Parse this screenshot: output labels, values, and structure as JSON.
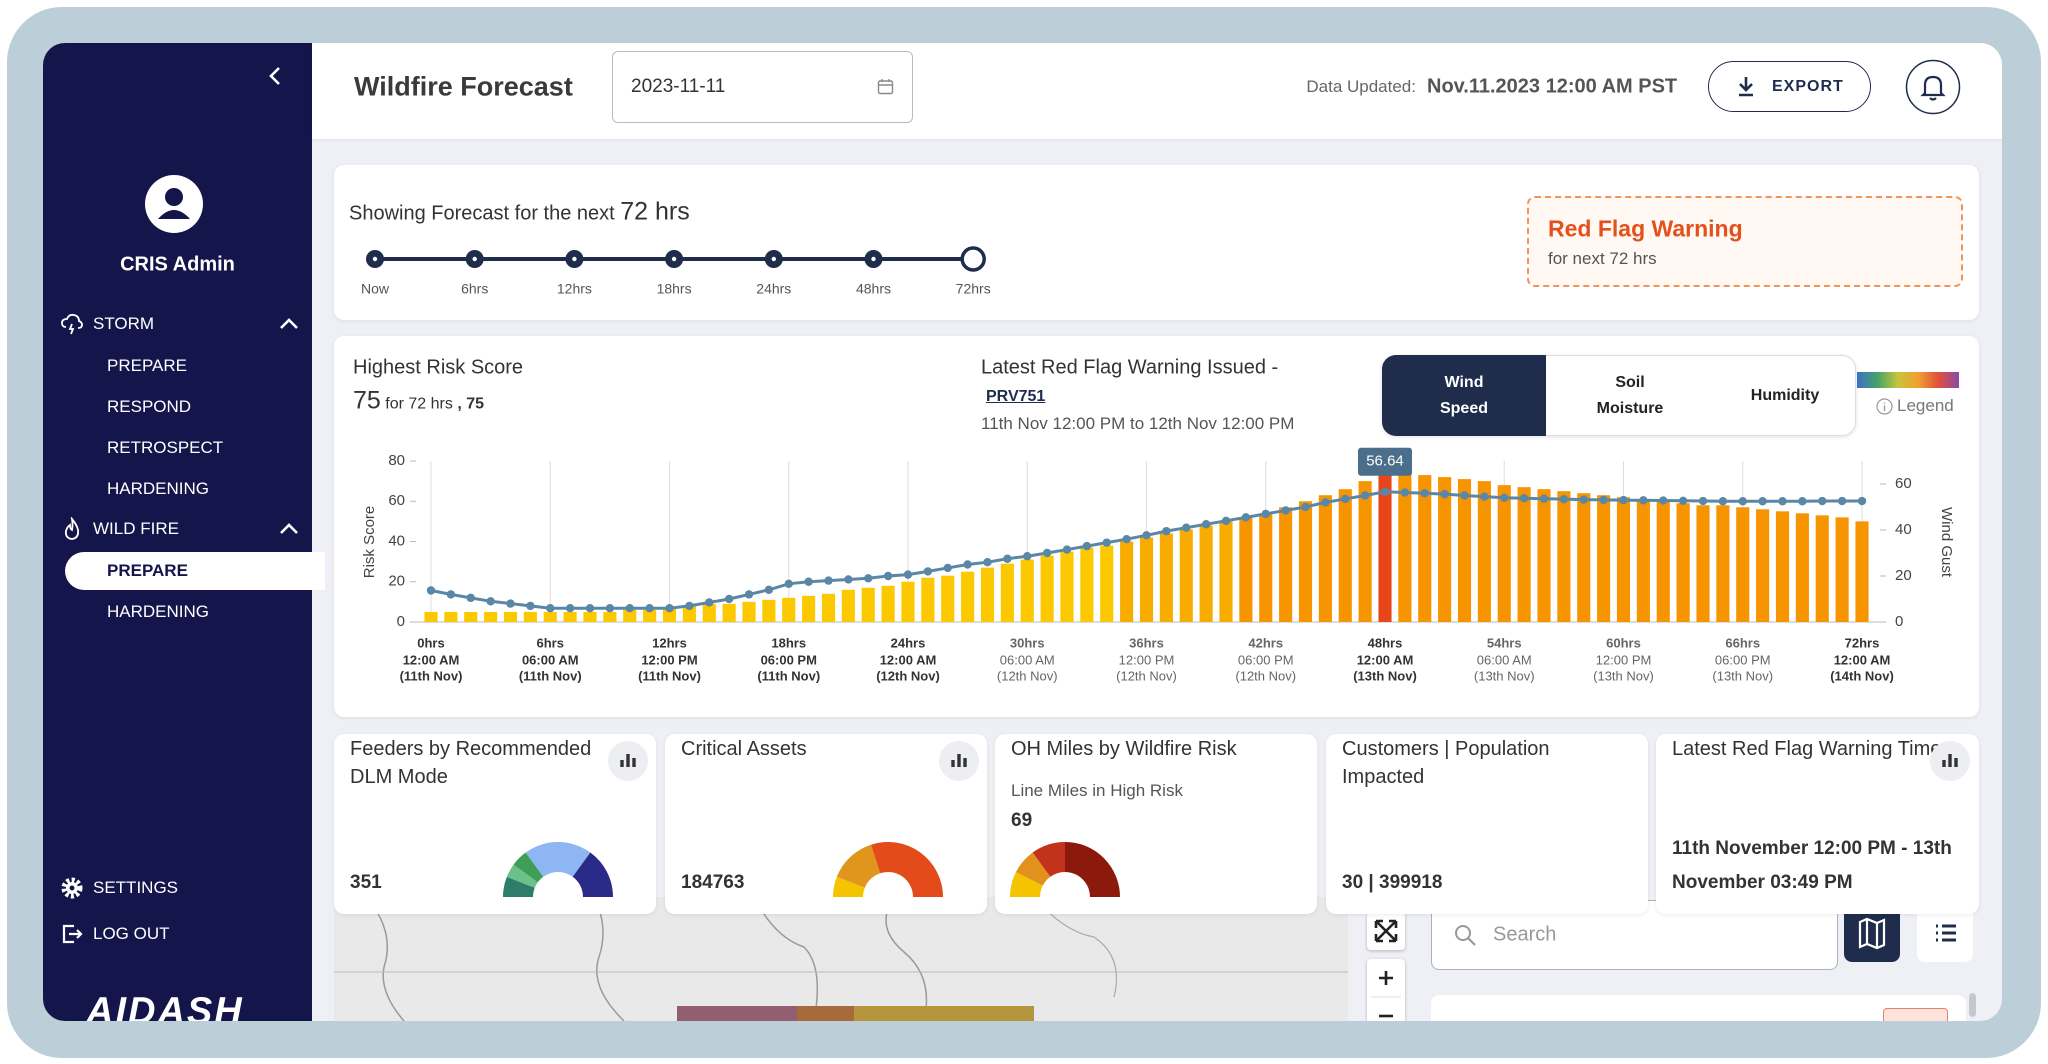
{
  "sidebar": {
    "user_name": "CRIS Admin",
    "sections": [
      {
        "label": "STORM",
        "items": [
          "PREPARE",
          "RESPOND",
          "RETROSPECT",
          "HARDENING"
        ]
      },
      {
        "label": "WILD FIRE",
        "items": [
          "PREPARE",
          "HARDENING"
        ]
      }
    ],
    "settings": "SETTINGS",
    "logout": "LOG OUT",
    "logo": "AIDASH"
  },
  "header": {
    "title": "Wildfire Forecast",
    "date": "2023-11-11",
    "updated_label": "Data Updated:",
    "updated_value": "Nov.11.2023 12:00 AM PST",
    "export": "EXPORT"
  },
  "forecast": {
    "label": "Showing Forecast for the next",
    "hours": "72 hrs",
    "steps": [
      "Now",
      "6hrs",
      "12hrs",
      "18hrs",
      "24hrs",
      "48hrs",
      "72hrs"
    ]
  },
  "red_flag": {
    "title": "Red Flag Warning",
    "subtitle": "for next 72 hrs"
  },
  "risk": {
    "title": "Highest Risk Score",
    "score": "75",
    "period": "for 72 hrs",
    "extra": ", 75"
  },
  "latest_warning": {
    "title": "Latest Red Flag Warning Issued -",
    "id": "PRV751",
    "range": "11th Nov 12:00 PM to 12th Nov 12:00 PM"
  },
  "toggle": {
    "options": [
      "Wind Speed",
      "Soil Moisture",
      "Humidity"
    ],
    "legend": "Legend"
  },
  "chart_data": {
    "type": "bar",
    "ylabel": "Risk Score",
    "y2label": "Wind Gust",
    "ylim": [
      0,
      80
    ],
    "yticks": [
      0,
      20,
      40,
      60,
      80
    ],
    "y2lim": [
      0,
      70
    ],
    "y2ticks": [
      0,
      20,
      40,
      60
    ],
    "grid": true,
    "categories": [
      {
        "hrs": "0hrs",
        "time": "12:00 AM",
        "date": "(11th Nov)"
      },
      null,
      null,
      null,
      null,
      null,
      {
        "hrs": "6hrs",
        "time": "06:00 AM",
        "date": "(11th Nov)"
      },
      null,
      null,
      null,
      null,
      null,
      {
        "hrs": "12hrs",
        "time": "12:00 PM",
        "date": "(11th Nov)"
      },
      null,
      null,
      null,
      null,
      null,
      {
        "hrs": "18hrs",
        "time": "06:00 PM",
        "date": "(11th Nov)"
      },
      null,
      null,
      null,
      null,
      null,
      {
        "hrs": "24hrs",
        "time": "12:00 AM",
        "date": "(12th Nov)"
      },
      null,
      null,
      null,
      null,
      null,
      {
        "hrs": "30hrs",
        "time": "06:00 AM",
        "date": "(12th Nov)"
      },
      null,
      null,
      null,
      null,
      null,
      {
        "hrs": "36hrs",
        "time": "12:00 PM",
        "date": "(12th Nov)"
      },
      null,
      null,
      null,
      null,
      null,
      {
        "hrs": "42hrs",
        "time": "06:00 PM",
        "date": "(12th Nov)"
      },
      null,
      null,
      null,
      null,
      null,
      {
        "hrs": "48hrs",
        "time": "12:00 AM",
        "date": "(13th Nov)"
      },
      null,
      null,
      null,
      null,
      null,
      {
        "hrs": "54hrs",
        "time": "06:00 AM",
        "date": "(13th Nov)"
      },
      null,
      null,
      null,
      null,
      null,
      {
        "hrs": "60hrs",
        "time": "12:00 PM",
        "date": "(13th Nov)"
      },
      null,
      null,
      null,
      null,
      null,
      {
        "hrs": "66hrs",
        "time": "06:00 PM",
        "date": "(13th Nov)"
      },
      null,
      null,
      null,
      null,
      null,
      {
        "hrs": "72hrs",
        "time": "12:00 AM",
        "date": "(14th Nov)"
      }
    ],
    "series": [
      {
        "values": [
          5,
          5,
          5,
          5,
          5,
          5,
          5,
          5,
          5,
          5,
          6,
          6,
          7,
          8,
          9,
          9,
          10,
          11,
          12,
          13,
          14,
          16,
          17,
          18,
          20,
          22,
          23,
          25,
          27,
          29,
          31,
          33,
          35,
          37,
          38,
          40,
          42,
          44,
          46,
          48,
          50,
          52,
          54,
          57,
          60,
          63,
          66,
          70,
          75,
          74,
          73,
          72,
          71,
          70,
          68,
          67,
          66,
          65,
          64,
          63,
          62,
          61,
          60,
          59,
          58,
          58,
          57,
          56,
          55,
          54,
          53,
          52,
          50
        ],
        "colors": [
          "#fcc800",
          "#fcc800",
          "#fcc800",
          "#fcc800",
          "#fcc800",
          "#fcc800",
          "#fcc800",
          "#fcc800",
          "#fcc800",
          "#fcc800",
          "#fcc800",
          "#fcc800",
          "#fcc800",
          "#fcc800",
          "#fcc800",
          "#fcc800",
          "#fcc800",
          "#fcc800",
          "#fcc800",
          "#fcc800",
          "#fcc800",
          "#fcc800",
          "#fcc800",
          "#fcc800",
          "#fcc800",
          "#fcc800",
          "#fcc800",
          "#fcc800",
          "#fcc800",
          "#fcc800",
          "#fcc800",
          "#fcc800",
          "#fcc800",
          "#fcc800",
          "#fcc800",
          "#f9ac00",
          "#f9ac00",
          "#f9ac00",
          "#f9ac00",
          "#f9ac00",
          "#f9ac00",
          "#f79500",
          "#f79500",
          "#f79500",
          "#f79500",
          "#f79500",
          "#f79500",
          "#f79500",
          "#e8461a",
          "#f79500",
          "#f79500",
          "#f79500",
          "#f79500",
          "#f79500",
          "#f79500",
          "#f79500",
          "#f79500",
          "#f79500",
          "#f79500",
          "#f79500",
          "#f79500",
          "#f79500",
          "#f79500",
          "#f79500",
          "#f79500",
          "#f79500",
          "#f79500",
          "#f79500",
          "#f79500",
          "#f79500",
          "#f79500",
          "#f79500",
          "#f79500"
        ]
      },
      {
        "type": "line",
        "axis": "y2",
        "color": "#5b87a6",
        "values": [
          13.7,
          12,
          10.5,
          9,
          8,
          7,
          6,
          6,
          6,
          6,
          6,
          6,
          6,
          7,
          8.5,
          10,
          12,
          14,
          16.6,
          17.5,
          18,
          18.5,
          19,
          20,
          20.6,
          22,
          23.5,
          25,
          26,
          27.5,
          28.6,
          30,
          31.5,
          33,
          34.5,
          36,
          37.7,
          39.5,
          41,
          42.5,
          44,
          45.5,
          47,
          48.5,
          50,
          52,
          53.5,
          55,
          56.64,
          56.3,
          56,
          55.6,
          55,
          54.5,
          54,
          53.8,
          53.6,
          53.4,
          53.2,
          53.1,
          53,
          52.9,
          52.8,
          52.7,
          52.6,
          52.5,
          52.5,
          52.5,
          52.5,
          52.5,
          52.6,
          52.6,
          52.6
        ]
      }
    ]
  },
  "cards": [
    {
      "title": "Feeders by Recommended DLM Mode",
      "value": "351"
    },
    {
      "title": "Critical Assets",
      "value": "184763"
    },
    {
      "title": "OH Miles by Wildfire Risk",
      "subtitle": "Line Miles in High Risk",
      "value": "69"
    },
    {
      "title": "Customers | Population Impacted",
      "value": "30 | 399918"
    },
    {
      "title": "Latest Red Flag Warning Time",
      "value": "11th November 12:00 PM - 13th November 03:49 PM"
    }
  ],
  "map": {
    "search": "Search"
  }
}
